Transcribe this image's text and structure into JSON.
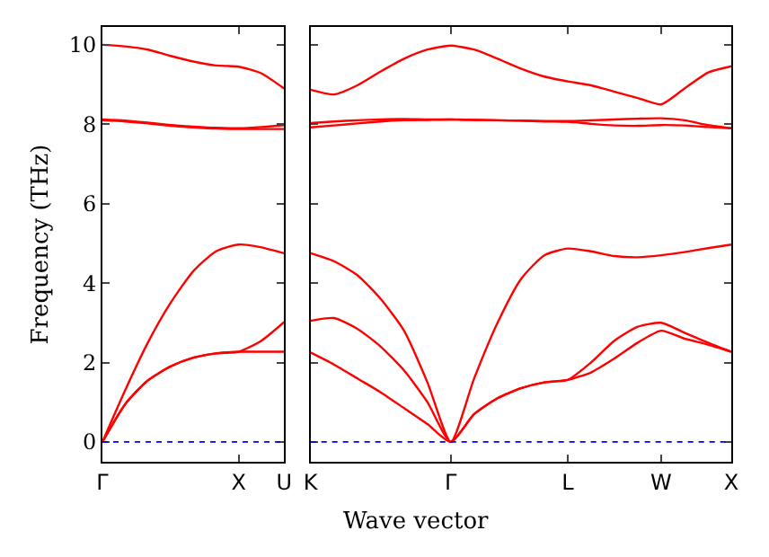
{
  "chart_data": [
    {
      "type": "line",
      "ylabel": "Frequency (THz)",
      "categories": [
        "Γ",
        null,
        null,
        null,
        null,
        null,
        "X",
        null,
        "U"
      ],
      "ylim": [
        -0.5,
        10.45
      ],
      "yticks": [
        0,
        2,
        4,
        6,
        8,
        10
      ],
      "marker": "none",
      "line_style": "solid",
      "ref_lines": [
        {
          "axis": "y",
          "value": 0,
          "color": "#0000ff",
          "line_style": "dotted"
        }
      ],
      "series": [
        {
          "color": "#ff0000",
          "values": [
            10.0,
            9.96,
            9.88,
            9.72,
            9.58,
            9.48,
            9.45,
            9.28,
            8.9
          ]
        },
        {
          "color": "#ff0000",
          "values": [
            8.12,
            8.09,
            8.04,
            7.98,
            7.94,
            7.91,
            7.9,
            7.93,
            7.98
          ]
        },
        {
          "color": "#ff0000",
          "values": [
            8.1,
            8.07,
            8.02,
            7.96,
            7.92,
            7.89,
            7.88,
            7.88,
            7.88
          ]
        },
        {
          "color": "#ff0000",
          "values": [
            0,
            1.3,
            2.5,
            3.5,
            4.3,
            4.8,
            4.97,
            4.9,
            4.75
          ]
        },
        {
          "color": "#ff0000",
          "values": [
            0,
            0.95,
            1.55,
            1.9,
            2.12,
            2.23,
            2.27,
            2.27,
            2.27
          ]
        },
        {
          "color": "#ff0000",
          "values": [
            0,
            0.95,
            1.55,
            1.9,
            2.12,
            2.23,
            2.27,
            2.55,
            3.02
          ]
        }
      ]
    },
    {
      "type": "line",
      "xlabel": "Wave vector",
      "categories": [
        "K",
        null,
        null,
        null,
        null,
        null,
        "Γ",
        null,
        null,
        null,
        null,
        "L",
        null,
        null,
        null,
        "W",
        null,
        null,
        "X"
      ],
      "ylim": [
        -0.5,
        10.45
      ],
      "yticks": [
        {
          "value": 0,
          "label": null
        },
        {
          "value": 2,
          "label": null
        },
        {
          "value": 4,
          "label": null
        },
        {
          "value": 6,
          "label": null
        },
        {
          "value": 8,
          "label": null
        },
        {
          "value": 10,
          "label": null
        }
      ],
      "tick_labels": "x",
      "marker": "none",
      "line_style": "solid",
      "ref_lines": [
        {
          "axis": "y",
          "value": 0,
          "color": "#0000ff",
          "line_style": "dotted"
        }
      ],
      "series": [
        {
          "color": "#ff0000",
          "values": [
            8.87,
            8.75,
            8.98,
            9.33,
            9.65,
            9.88,
            9.98,
            9.88,
            9.65,
            9.4,
            9.2,
            9.08,
            8.98,
            8.82,
            8.66,
            8.5,
            8.9,
            9.3,
            9.46
          ]
        },
        {
          "color": "#ff0000",
          "values": [
            8.03,
            8.07,
            8.1,
            8.12,
            8.13,
            8.12,
            8.12,
            8.11,
            8.1,
            8.09,
            8.08,
            8.08,
            8.1,
            8.12,
            8.14,
            8.15,
            8.1,
            7.98,
            7.9
          ]
        },
        {
          "color": "#ff0000",
          "values": [
            7.92,
            7.97,
            8.02,
            8.07,
            8.1,
            8.11,
            8.12,
            8.11,
            8.1,
            8.09,
            8.07,
            8.06,
            8.01,
            7.97,
            7.96,
            7.98,
            7.97,
            7.93,
            7.9
          ]
        },
        {
          "color": "#ff0000",
          "values": [
            4.75,
            4.55,
            4.2,
            3.6,
            2.8,
            1.5,
            0,
            1.6,
            3.0,
            4.1,
            4.7,
            4.87,
            4.8,
            4.68,
            4.65,
            4.7,
            4.78,
            4.88,
            4.97
          ]
        },
        {
          "color": "#ff0000",
          "values": [
            3.05,
            3.12,
            2.85,
            2.4,
            1.8,
            1.0,
            0,
            0.7,
            1.1,
            1.35,
            1.5,
            1.56,
            2.0,
            2.55,
            2.9,
            3.0,
            2.75,
            2.5,
            2.27
          ]
        },
        {
          "color": "#ff0000",
          "values": [
            2.25,
            1.95,
            1.6,
            1.25,
            0.85,
            0.45,
            0,
            0.7,
            1.1,
            1.35,
            1.5,
            1.56,
            1.75,
            2.1,
            2.5,
            2.8,
            2.6,
            2.45,
            2.27
          ]
        }
      ]
    }
  ]
}
